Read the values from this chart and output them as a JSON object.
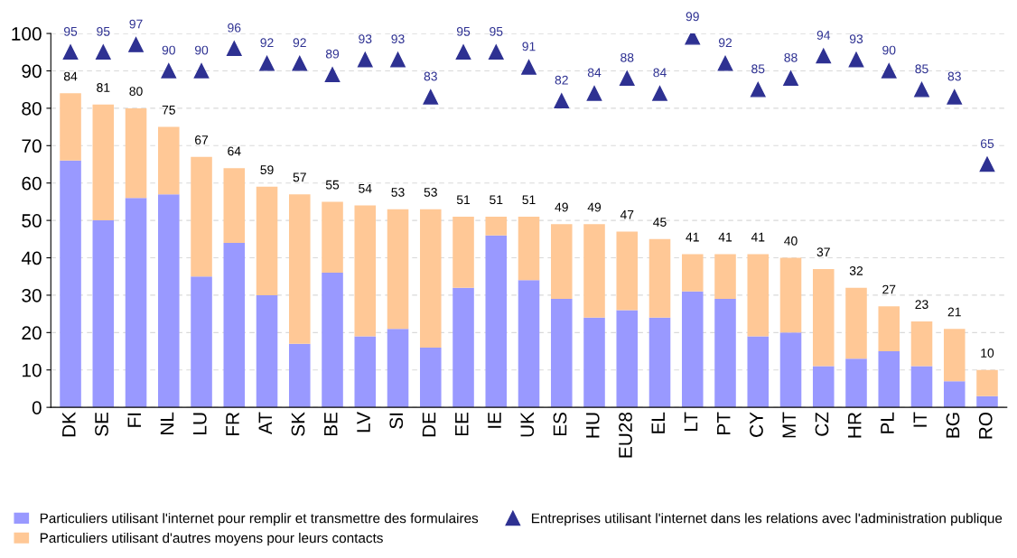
{
  "chart_data": {
    "type": "bar",
    "stacked": true,
    "categories": [
      "DK",
      "SE",
      "FI",
      "NL",
      "LU",
      "FR",
      "AT",
      "SK",
      "BE",
      "LV",
      "SI",
      "DE",
      "EE",
      "IE",
      "UK",
      "ES",
      "HU",
      "EU28",
      "EL",
      "LT",
      "PT",
      "CY",
      "MT",
      "CZ",
      "HR",
      "PL",
      "IT",
      "BG",
      "RO"
    ],
    "series": [
      {
        "name": "Particuliers utilisant l'internet pour remplir et transmettre des formulaires",
        "color": "#9999ff",
        "values": [
          66,
          50,
          56,
          57,
          35,
          44,
          30,
          17,
          36,
          19,
          21,
          16,
          32,
          46,
          34,
          29,
          24,
          26,
          24,
          31,
          29,
          19,
          20,
          11,
          13,
          15,
          11,
          7,
          3
        ]
      },
      {
        "name": "Particuliers utilisant d'autres moyens pour leurs contacts",
        "color": "#ffc896",
        "values": [
          18,
          31,
          24,
          18,
          32,
          20,
          29,
          40,
          19,
          35,
          32,
          37,
          19,
          5,
          17,
          20,
          25,
          21,
          21,
          10,
          12,
          22,
          20,
          26,
          19,
          12,
          12,
          14,
          7
        ]
      },
      {
        "name": "Entreprises utilisant l'internet dans les relations avec l'administration publique",
        "type": "scatter",
        "color": "#2e3192",
        "marker": "triangle",
        "values": [
          95,
          95,
          97,
          90,
          90,
          96,
          92,
          92,
          89,
          93,
          93,
          83,
          95,
          95,
          91,
          82,
          84,
          88,
          84,
          99,
          92,
          85,
          88,
          94,
          93,
          90,
          85,
          83,
          65
        ],
        "value_labels": [
          "95",
          "95",
          "97",
          "90",
          "90",
          "96",
          "92",
          "92",
          "89",
          "93",
          "93",
          "83",
          "95",
          "95",
          "91",
          "82",
          "84",
          "88",
          "84",
          "99",
          "92",
          "85",
          "88",
          "94",
          "93",
          "90",
          "85",
          "83",
          "65"
        ]
      }
    ],
    "totals": [
      "84",
      "81",
      "80",
      "75",
      "67",
      "64",
      "59",
      "57",
      "55",
      "54",
      "53",
      "53",
      "51",
      "51",
      "51",
      "49",
      "49",
      "47",
      "45",
      "41",
      "41",
      "41",
      "40",
      "37",
      "32",
      "27",
      "23",
      "21",
      "10"
    ],
    "ylim": [
      0,
      100
    ],
    "yticks": [
      0,
      10,
      20,
      30,
      40,
      50,
      60,
      70,
      80,
      90,
      100
    ],
    "grid": "y",
    "legend": "bottom"
  }
}
